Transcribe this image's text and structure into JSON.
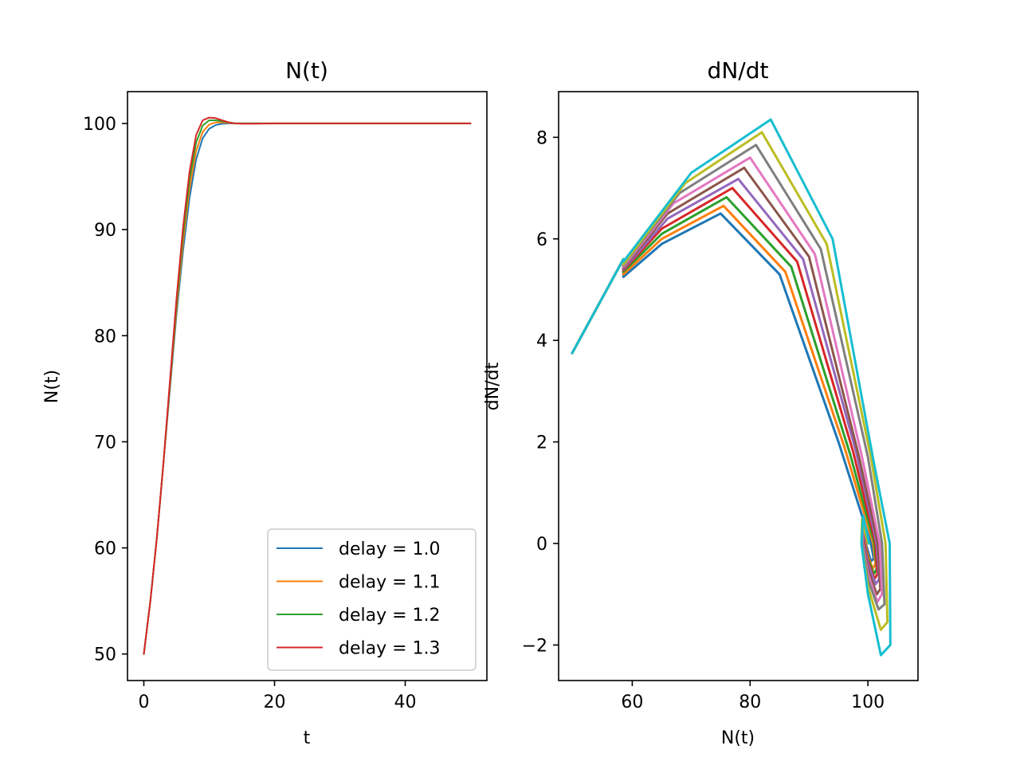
{
  "chart_data": [
    {
      "type": "line",
      "title": "N(t)",
      "xlabel": "t",
      "ylabel": "N(t)",
      "xlim": [
        -2.5,
        52.5
      ],
      "ylim": [
        47.5,
        103.0
      ],
      "xticks": [
        0,
        20,
        40
      ],
      "yticks": [
        50,
        60,
        70,
        80,
        90,
        100
      ],
      "legend_position": "lower right",
      "grid": false,
      "series": [
        {
          "name": "delay = 1.0",
          "color": "#1f77b4",
          "x": [
            0,
            1,
            2,
            3,
            4,
            5,
            6,
            7,
            8,
            9,
            10,
            11,
            12,
            13,
            14,
            15,
            17,
            20,
            25,
            30,
            40,
            50
          ],
          "y": [
            50,
            55,
            61,
            68,
            75,
            82,
            88,
            93,
            96.6,
            98.6,
            99.5,
            99.85,
            99.97,
            100.0,
            100.0,
            100.0,
            100.0,
            100.0,
            100.0,
            100.0,
            100.0,
            100.0
          ]
        },
        {
          "name": "delay = 1.1",
          "color": "#ff7f0e",
          "x": [
            0,
            1,
            2,
            3,
            4,
            5,
            6,
            7,
            8,
            9,
            10,
            11,
            12,
            13,
            14,
            15,
            17,
            20,
            25,
            30,
            40,
            50
          ],
          "y": [
            50,
            55,
            61,
            68,
            75.3,
            82.5,
            88.8,
            93.9,
            97.4,
            99.2,
            99.9,
            100.1,
            100.1,
            100.05,
            100.0,
            100.0,
            100.0,
            100.0,
            100.0,
            100.0,
            100.0,
            100.0
          ]
        },
        {
          "name": "delay = 1.2",
          "color": "#2ca02c",
          "x": [
            0,
            1,
            2,
            3,
            4,
            5,
            6,
            7,
            8,
            9,
            10,
            11,
            12,
            13,
            14,
            15,
            17,
            20,
            25,
            30,
            40,
            50
          ],
          "y": [
            50,
            55,
            61,
            68,
            75.5,
            83,
            89.5,
            94.7,
            98.2,
            99.8,
            100.3,
            100.3,
            100.2,
            100.1,
            100.0,
            100.0,
            100.0,
            100.0,
            100.0,
            100.0,
            100.0,
            100.0
          ]
        },
        {
          "name": "delay = 1.3",
          "color": "#d62728",
          "x": [
            0,
            1,
            2,
            3,
            4,
            5,
            6,
            7,
            8,
            9,
            10,
            11,
            12,
            13,
            14,
            15,
            17,
            20,
            25,
            30,
            40,
            50
          ],
          "y": [
            50,
            55,
            61,
            68,
            75.8,
            83.5,
            90.2,
            95.5,
            98.9,
            100.3,
            100.55,
            100.5,
            100.3,
            100.1,
            100.0,
            99.97,
            99.98,
            100.0,
            100.0,
            100.0,
            100.0,
            100.0
          ]
        }
      ]
    },
    {
      "type": "line",
      "title": "dN/dt",
      "xlabel": "N(t)",
      "ylabel": "dN/dt",
      "xlim": [
        47.5,
        108.5
      ],
      "ylim": [
        -2.7,
        8.9
      ],
      "xticks": [
        60,
        80,
        100
      ],
      "yticks": [
        -2,
        0,
        2,
        4,
        6,
        8
      ],
      "grid": false,
      "series": [
        {
          "color": "#1f77b4",
          "x": [
            49.8,
            58.5,
            58.5,
            65,
            75,
            85,
            95,
            100.5,
            101,
            100.5,
            100,
            99.6,
            99.7,
            100
          ],
          "y": [
            3.75,
            5.6,
            5.25,
            5.9,
            6.5,
            5.3,
            2.0,
            0.0,
            -0.3,
            -0.35,
            -0.15,
            0.0,
            0.08,
            0.0
          ]
        },
        {
          "color": "#ff7f0e",
          "x": [
            49.8,
            58.5,
            58.5,
            65,
            75.5,
            86,
            96,
            100.9,
            101.3,
            100.8,
            100,
            99.5,
            99.6,
            100
          ],
          "y": [
            3.75,
            5.6,
            5.3,
            6.0,
            6.65,
            5.35,
            1.9,
            0.0,
            -0.4,
            -0.5,
            -0.25,
            0.0,
            0.12,
            0.0
          ]
        },
        {
          "color": "#2ca02c",
          "x": [
            49.8,
            58.5,
            58.5,
            65,
            76,
            87,
            97,
            101.1,
            101.5,
            101,
            100,
            99.4,
            99.5,
            100
          ],
          "y": [
            3.75,
            5.6,
            5.35,
            6.1,
            6.82,
            5.45,
            1.75,
            0.0,
            -0.5,
            -0.6,
            -0.3,
            0.0,
            0.18,
            0.0
          ]
        },
        {
          "color": "#d62728",
          "x": [
            49.8,
            58.5,
            58.5,
            65,
            77,
            88,
            97.5,
            101.3,
            101.6,
            101.1,
            100,
            99.4,
            99.5,
            100
          ],
          "y": [
            3.75,
            5.6,
            5.38,
            6.2,
            7.0,
            5.55,
            1.8,
            0.0,
            -0.6,
            -0.7,
            -0.35,
            0.0,
            0.2,
            0.0
          ]
        },
        {
          "color": "#9467bd",
          "x": [
            49.8,
            58.5,
            58.5,
            66,
            78,
            89,
            98,
            101.5,
            101.9,
            101.3,
            100,
            99.3,
            99.4,
            100
          ],
          "y": [
            3.75,
            5.6,
            5.4,
            6.4,
            7.18,
            5.6,
            1.8,
            0.0,
            -0.7,
            -0.8,
            -0.4,
            0.0,
            0.25,
            0.0
          ]
        },
        {
          "color": "#8c564b",
          "x": [
            49.8,
            58.5,
            58.5,
            66,
            79,
            90,
            98.5,
            101.7,
            102.1,
            101.5,
            100,
            99.2,
            99.3,
            100
          ],
          "y": [
            3.75,
            5.6,
            5.42,
            6.5,
            7.4,
            5.65,
            1.7,
            0.0,
            -0.9,
            -1.0,
            -0.5,
            0.0,
            0.3,
            0.0
          ]
        },
        {
          "color": "#e377c2",
          "x": [
            49.8,
            58.5,
            58.5,
            67,
            80,
            91,
            99,
            102,
            102.4,
            101.6,
            100,
            99.1,
            99.2,
            100
          ],
          "y": [
            3.75,
            5.6,
            5.45,
            6.7,
            7.6,
            5.7,
            1.7,
            0.0,
            -1.0,
            -1.15,
            -0.6,
            0.0,
            0.35,
            0.0
          ]
        },
        {
          "color": "#7f7f7f",
          "x": [
            49.8,
            58.5,
            58.5,
            68,
            81,
            92,
            100,
            102.4,
            102.8,
            101.8,
            100,
            99.0,
            99.1,
            100
          ],
          "y": [
            3.75,
            5.6,
            5.48,
            6.9,
            7.85,
            5.8,
            1.7,
            0.0,
            -1.2,
            -1.3,
            -0.7,
            0.0,
            0.4,
            0.0
          ]
        },
        {
          "color": "#bcbd22",
          "x": [
            49.8,
            58.5,
            58.5,
            69,
            82,
            93,
            100.5,
            103,
            103.3,
            102.2,
            100,
            98.9,
            99.0,
            100
          ],
          "y": [
            3.75,
            5.6,
            5.5,
            7.1,
            8.1,
            5.9,
            1.7,
            0.0,
            -1.55,
            -1.7,
            -0.85,
            0.0,
            0.48,
            0.0
          ]
        },
        {
          "color": "#17becf",
          "x": [
            49.8,
            58.5,
            58.5,
            70,
            83.5,
            94,
            101,
            103.7,
            103.8,
            102.2,
            100,
            98.9,
            99.2,
            100.2
          ],
          "y": [
            3.75,
            5.6,
            5.55,
            7.3,
            8.35,
            6.0,
            1.6,
            0.0,
            -2.0,
            -2.2,
            -1.0,
            0.0,
            0.55,
            0.0
          ]
        }
      ]
    }
  ]
}
